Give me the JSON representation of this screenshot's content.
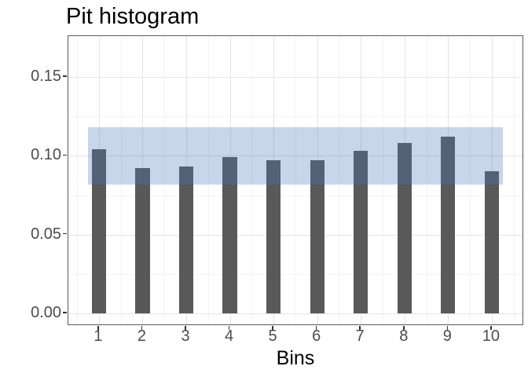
{
  "title": "Pit histogram",
  "x_axis_title": "Bins",
  "chart_data": {
    "type": "bar",
    "title": "Pit histogram",
    "xlabel": "Bins",
    "ylabel": "",
    "categories": [
      "1",
      "2",
      "3",
      "4",
      "5",
      "6",
      "7",
      "8",
      "9",
      "10"
    ],
    "values": [
      0.104,
      0.092,
      0.093,
      0.099,
      0.097,
      0.097,
      0.103,
      0.108,
      0.112,
      0.09
    ],
    "bar_color": "#595959",
    "bar_width_bins": 0.33,
    "band": {
      "meaning": "expected-uniform-confidence-band",
      "x_min": 0.75,
      "x_max": 10.25,
      "y_min": 0.082,
      "y_max": 0.118,
      "fill": "rgba(70,120,185,0.30)"
    },
    "x_axis": {
      "min": 0.3,
      "max": 10.74,
      "tick_values": [
        1,
        2,
        3,
        4,
        5,
        6,
        7,
        8,
        9,
        10
      ],
      "tick_labels": [
        "1",
        "2",
        "3",
        "4",
        "5",
        "6",
        "7",
        "8",
        "9",
        "10"
      ],
      "minor_values": [
        0.5,
        1.5,
        2.5,
        3.5,
        4.5,
        5.5,
        6.5,
        7.5,
        8.5,
        9.5,
        10.5
      ]
    },
    "y_axis": {
      "min": -0.008,
      "max": 0.176,
      "tick_values": [
        0.0,
        0.05,
        0.1,
        0.15
      ],
      "tick_labels": [
        "0.00",
        "0.05",
        "0.10",
        "0.15"
      ],
      "minor_values": [
        0.025,
        0.075,
        0.125,
        0.175
      ]
    },
    "grid": {
      "major_color": "#e4e4e4",
      "minor_color": "#f3f3f3",
      "shown": true
    },
    "panel_border_color": "#595959",
    "background": "#ffffff",
    "legend": "none"
  }
}
